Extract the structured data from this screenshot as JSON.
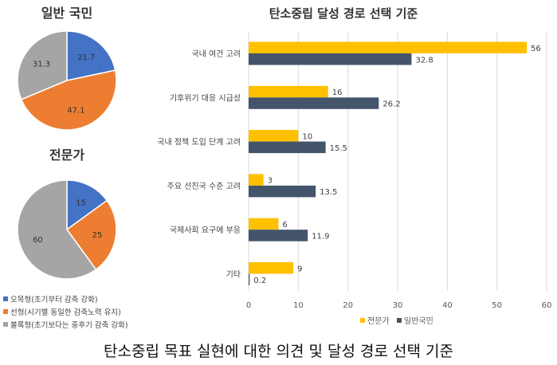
{
  "chart_data": [
    {
      "type": "pie",
      "title": "일반 국민",
      "labels": [
        "오목형(초기부터 감축 강화)",
        "선형(시기별 동일한 감축노력 유지)",
        "볼록형(초기보다는 중후기 감축 강화)"
      ],
      "values": [
        21.7,
        47.1,
        31.3
      ],
      "value_labels": [
        "21.7",
        "47.1",
        "31.3"
      ],
      "colors": [
        "#4472C4",
        "#ED7D31",
        "#A5A5A5"
      ]
    },
    {
      "type": "pie",
      "title": "전문가",
      "labels": [
        "오목형(초기부터 감축 강화)",
        "선형(시기별 동일한 감축노력 유지)",
        "볼록형(초기보다는 중후기 감축 강화)"
      ],
      "values": [
        15,
        25,
        60
      ],
      "value_labels": [
        "15",
        "25",
        "60"
      ],
      "colors": [
        "#4472C4",
        "#ED7D31",
        "#A5A5A5"
      ]
    },
    {
      "type": "bar",
      "orientation": "horizontal",
      "title": "탄소중립 달성 경로 선택 기준",
      "categories": [
        "국내 여건 고려",
        "기후위기 대응 시급성",
        "국내 정책 도입 단계 고려",
        "주요 선진국 수준 고려",
        "국제사회 요구에 부응",
        "기타"
      ],
      "series": [
        {
          "name": "전문가",
          "values": [
            56,
            16,
            10,
            3,
            6,
            9
          ],
          "labels": [
            "56",
            "16",
            "10",
            "3",
            "6",
            "9"
          ],
          "color": "#FFC000"
        },
        {
          "name": "일반국민",
          "values": [
            32.8,
            26.2,
            15.5,
            13.5,
            11.9,
            0.2
          ],
          "labels": [
            "32.8",
            "26.2",
            "15.5",
            "13.5",
            "11.9",
            "0.2"
          ],
          "color": "#44546A"
        }
      ],
      "xlim": [
        0,
        60
      ],
      "xticks": [
        "0",
        "10",
        "20",
        "30",
        "40",
        "50",
        "60"
      ],
      "grid": true,
      "legend": "bottom"
    }
  ],
  "caption": "탄소중립 목표 실현에 대한 의견 및 달성 경로 선택 기준"
}
